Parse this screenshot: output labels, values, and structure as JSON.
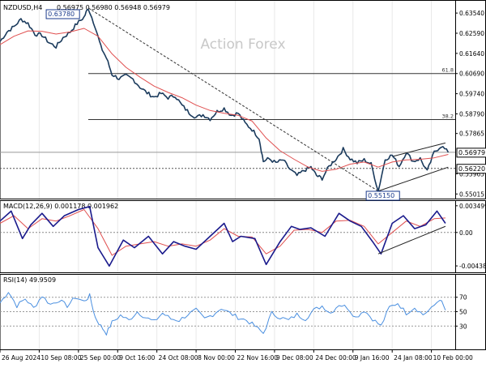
{
  "chart_data": [
    {
      "type": "candlestick",
      "title": "NZDUSD,H4",
      "header_values": [
        "0.56975",
        "0.56980",
        "0.56948",
        "0.56979"
      ],
      "watermark": "Action Forex",
      "y_ticks": [
        "0.63540",
        "0.62590",
        "0.61640",
        "0.60690",
        "0.59740",
        "0.58790",
        "0.57865",
        "0.55965",
        "0.55015"
      ],
      "fib_labels": [
        "61.8",
        "38.2"
      ],
      "fib_levels": [
        0.6069,
        0.5852
      ],
      "horizontal_levels": [
        0.5698,
        0.5622
      ],
      "peak_label": "0.63780",
      "trough_label": "0.55150",
      "current_price_label": "0.56979",
      "support_label": "0.56220",
      "series": [
        {
          "name": "price",
          "points": [
            [
              0,
              0.622
            ],
            [
              5,
              0.6265
            ],
            [
              10,
              0.629
            ],
            [
              15,
              0.6325
            ],
            [
              20,
              0.6305
            ],
            [
              25,
              0.6255
            ],
            [
              30,
              0.625
            ],
            [
              35,
              0.6215
            ],
            [
              40,
              0.6195
            ],
            [
              45,
              0.6238
            ],
            [
              50,
              0.6265
            ],
            [
              55,
              0.6305
            ],
            [
              60,
              0.6335
            ],
            [
              63,
              0.6378
            ],
            [
              68,
              0.629
            ],
            [
              72,
              0.6195
            ],
            [
              76,
              0.6142
            ],
            [
              80,
              0.6065
            ],
            [
              85,
              0.6045
            ],
            [
              90,
              0.6058
            ],
            [
              95,
              0.6042
            ],
            [
              100,
              0.6005
            ],
            [
              105,
              0.5978
            ],
            [
              110,
              0.5958
            ],
            [
              115,
              0.5975
            ],
            [
              120,
              0.5955
            ],
            [
              125,
              0.5965
            ],
            [
              130,
              0.5918
            ],
            [
              135,
              0.5885
            ],
            [
              140,
              0.5862
            ],
            [
              145,
              0.5875
            ],
            [
              150,
              0.5855
            ],
            [
              155,
              0.589
            ],
            [
              160,
              0.5905
            ],
            [
              165,
              0.5872
            ],
            [
              170,
              0.5882
            ],
            [
              175,
              0.5835
            ],
            [
              180,
              0.5805
            ],
            [
              185,
              0.5765
            ],
            [
              188,
              0.5655
            ],
            [
              192,
              0.5668
            ],
            [
              197,
              0.5648
            ],
            [
              202,
              0.5662
            ],
            [
              207,
              0.5618
            ],
            [
              212,
              0.5588
            ],
            [
              217,
              0.5612
            ],
            [
              222,
              0.5628
            ],
            [
              226,
              0.5588
            ],
            [
              230,
              0.5575
            ],
            [
              235,
              0.5632
            ],
            [
              240,
              0.5668
            ],
            [
              245,
              0.5712
            ],
            [
              250,
              0.5668
            ],
            [
              255,
              0.5648
            ],
            [
              260,
              0.5662
            ],
            [
              265,
              0.5642
            ],
            [
              270,
              0.5515
            ],
            [
              275,
              0.5665
            ],
            [
              280,
              0.5685
            ],
            [
              285,
              0.5632
            ],
            [
              290,
              0.5698
            ],
            [
              295,
              0.5655
            ],
            [
              300,
              0.5668
            ],
            [
              305,
              0.5608
            ],
            [
              310,
              0.5698
            ],
            [
              315,
              0.5728
            ],
            [
              320,
              0.5698
            ]
          ]
        },
        {
          "name": "moving_average",
          "points": [
            [
              0,
              0.6205
            ],
            [
              10,
              0.6245
            ],
            [
              20,
              0.627
            ],
            [
              30,
              0.6268
            ],
            [
              40,
              0.6255
            ],
            [
              50,
              0.6265
            ],
            [
              60,
              0.6282
            ],
            [
              70,
              0.6245
            ],
            [
              80,
              0.6162
            ],
            [
              90,
              0.6098
            ],
            [
              100,
              0.6052
            ],
            [
              110,
              0.601
            ],
            [
              120,
              0.598
            ],
            [
              130,
              0.5955
            ],
            [
              140,
              0.592
            ],
            [
              150,
              0.5895
            ],
            [
              160,
              0.5882
            ],
            [
              170,
              0.5872
            ],
            [
              180,
              0.5845
            ],
            [
              190,
              0.5765
            ],
            [
              200,
              0.5705
            ],
            [
              210,
              0.5665
            ],
            [
              220,
              0.5628
            ],
            [
              230,
              0.5608
            ],
            [
              240,
              0.5618
            ],
            [
              250,
              0.5642
            ],
            [
              260,
              0.5652
            ],
            [
              270,
              0.5628
            ],
            [
              280,
              0.5652
            ],
            [
              290,
              0.5662
            ],
            [
              300,
              0.5665
            ],
            [
              310,
              0.5672
            ],
            [
              320,
              0.5688
            ]
          ]
        }
      ],
      "ylim": [
        0.5495,
        0.6385
      ]
    },
    {
      "type": "line",
      "title": "MACD(12,26,9) 0.001178 0.001962",
      "y_ticks": [
        "0.003499",
        "0.00",
        "-0.004382"
      ],
      "ylim": [
        -0.0048,
        0.0038
      ],
      "series": [
        {
          "name": "macd",
          "points": [
            [
              0,
              0.0015
            ],
            [
              8,
              0.0028
            ],
            [
              16,
              -0.0008
            ],
            [
              22,
              0.001
            ],
            [
              30,
              0.0025
            ],
            [
              38,
              0.0008
            ],
            [
              46,
              0.0022
            ],
            [
              56,
              0.003
            ],
            [
              64,
              0.0034
            ],
            [
              70,
              -0.002
            ],
            [
              78,
              -0.0044
            ],
            [
              88,
              -0.001
            ],
            [
              96,
              -0.002
            ],
            [
              106,
              -0.0005
            ],
            [
              116,
              -0.0028
            ],
            [
              124,
              -0.0012
            ],
            [
              132,
              -0.0018
            ],
            [
              140,
              -0.0022
            ],
            [
              150,
              -0.0005
            ],
            [
              160,
              0.0012
            ],
            [
              166,
              -0.0012
            ],
            [
              172,
              -0.0005
            ],
            [
              182,
              -0.0008
            ],
            [
              190,
              -0.0042
            ],
            [
              200,
              -0.0012
            ],
            [
              208,
              0.0008
            ],
            [
              214,
              0.0004
            ],
            [
              222,
              0.0006
            ],
            [
              232,
              -0.0005
            ],
            [
              242,
              0.0025
            ],
            [
              250,
              0.0015
            ],
            [
              258,
              0.0008
            ],
            [
              266,
              -0.0012
            ],
            [
              272,
              -0.0028
            ],
            [
              280,
              0.0012
            ],
            [
              288,
              0.0022
            ],
            [
              296,
              0.0005
            ],
            [
              304,
              0.001
            ],
            [
              312,
              0.0028
            ],
            [
              318,
              0.0012
            ]
          ]
        },
        {
          "name": "signal",
          "points": [
            [
              0,
              0.0012
            ],
            [
              10,
              0.0022
            ],
            [
              20,
              0.0005
            ],
            [
              30,
              0.0018
            ],
            [
              40,
              0.0015
            ],
            [
              50,
              0.0022
            ],
            [
              60,
              0.003
            ],
            [
              70,
              0.0005
            ],
            [
              80,
              -0.003
            ],
            [
              90,
              -0.0018
            ],
            [
              100,
              -0.0015
            ],
            [
              110,
              -0.0012
            ],
            [
              120,
              -0.0018
            ],
            [
              130,
              -0.0015
            ],
            [
              140,
              -0.0018
            ],
            [
              150,
              -0.001
            ],
            [
              160,
              0.0005
            ],
            [
              170,
              -0.0005
            ],
            [
              180,
              -0.0006
            ],
            [
              190,
              -0.0028
            ],
            [
              200,
              -0.0018
            ],
            [
              210,
              0.0003
            ],
            [
              220,
              0.0004
            ],
            [
              230,
              0.0
            ],
            [
              240,
              0.0015
            ],
            [
              250,
              0.0016
            ],
            [
              260,
              0.0008
            ],
            [
              270,
              -0.0015
            ],
            [
              280,
              0.0
            ],
            [
              290,
              0.0015
            ],
            [
              300,
              0.0008
            ],
            [
              310,
              0.0018
            ],
            [
              318,
              0.0019
            ]
          ]
        }
      ]
    },
    {
      "type": "line",
      "title": "RSI(14) 49.9509",
      "y_ticks": [
        "70",
        "50",
        "30"
      ],
      "ylim": [
        0,
        100
      ],
      "series": [
        {
          "name": "rsi",
          "points": [
            [
              0,
              62
            ],
            [
              6,
              78
            ],
            [
              12,
              58
            ],
            [
              18,
              68
            ],
            [
              24,
              55
            ],
            [
              30,
              72
            ],
            [
              36,
              60
            ],
            [
              42,
              66
            ],
            [
              48,
              58
            ],
            [
              54,
              70
            ],
            [
              60,
              64
            ],
            [
              64,
              72
            ],
            [
              68,
              42
            ],
            [
              72,
              30
            ],
            [
              76,
              20
            ],
            [
              80,
              35
            ],
            [
              86,
              45
            ],
            [
              92,
              38
            ],
            [
              98,
              50
            ],
            [
              104,
              42
            ],
            [
              110,
              36
            ],
            [
              116,
              48
            ],
            [
              122,
              40
            ],
            [
              128,
              38
            ],
            [
              134,
              46
            ],
            [
              140,
              52
            ],
            [
              146,
              40
            ],
            [
              152,
              46
            ],
            [
              158,
              55
            ],
            [
              164,
              48
            ],
            [
              170,
              42
            ],
            [
              176,
              38
            ],
            [
              182,
              30
            ],
            [
              188,
              20
            ],
            [
              194,
              48
            ],
            [
              200,
              42
            ],
            [
              206,
              38
            ],
            [
              212,
              46
            ],
            [
              218,
              40
            ],
            [
              224,
              52
            ],
            [
              230,
              58
            ],
            [
              236,
              48
            ],
            [
              242,
              60
            ],
            [
              248,
              56
            ],
            [
              254,
              42
            ],
            [
              260,
              52
            ],
            [
              266,
              40
            ],
            [
              272,
              30
            ],
            [
              278,
              56
            ],
            [
              284,
              62
            ],
            [
              290,
              48
            ],
            [
              296,
              56
            ],
            [
              302,
              46
            ],
            [
              308,
              54
            ],
            [
              314,
              68
            ],
            [
              318,
              52
            ]
          ]
        }
      ]
    }
  ],
  "x_axis": {
    "labels": [
      "26 Aug 2024",
      "10 Sep 08:00",
      "25 Sep 00:00",
      "9 Oct 16:00",
      "24 Oct 08:00",
      "8 Nov 00:00",
      "22 Nov 16:00",
      "9 Dec 08:00",
      "24 Dec 00:00",
      "9 Jan 16:00",
      "24 Jan 08:00",
      "10 Feb 00:00"
    ],
    "label_x": [
      0,
      28,
      56,
      84,
      112,
      140,
      168,
      196,
      224,
      252,
      280,
      308
    ],
    "xlim": [
      0,
      325
    ]
  },
  "colors": {
    "price": "#1a3a5c",
    "moving_average": "#e05050",
    "macd": "#1a1a8c",
    "signal": "#e05050",
    "rsi": "#4a8fe0",
    "grid": "#e8e8e8",
    "watermark": "#c8c8c8"
  }
}
